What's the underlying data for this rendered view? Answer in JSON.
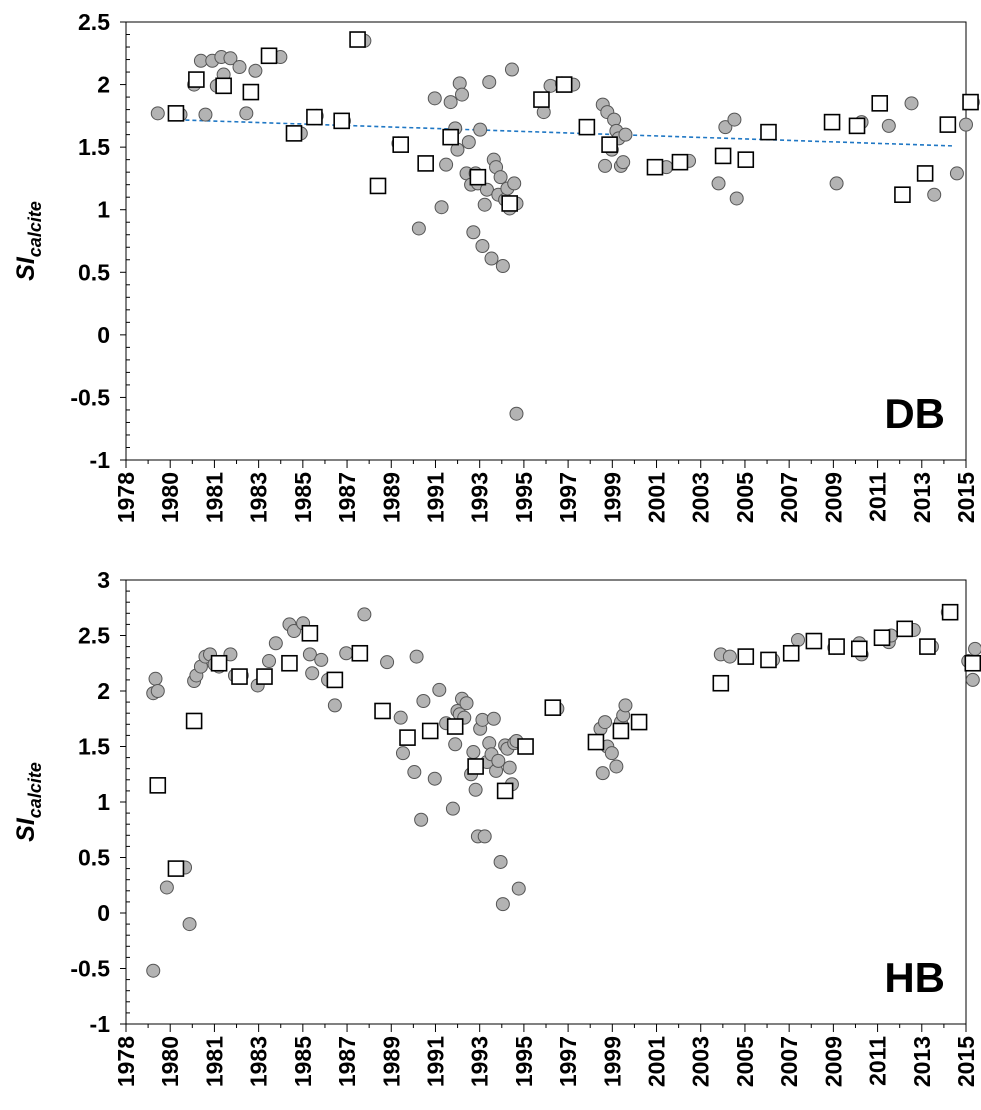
{
  "chart_data": [
    {
      "type": "scatter",
      "panel_label": "DB",
      "ylabel_main": "SI",
      "ylabel_sub": "calcite",
      "ylim": [
        -1,
        2.5
      ],
      "yticks": [
        "-1",
        "-0.5",
        "0",
        "0.5",
        "1",
        "1.5",
        "2",
        "2.5"
      ],
      "xlim": [
        1978,
        2015
      ],
      "xticks": [
        "1978",
        "1980",
        "1981",
        "1983",
        "1985",
        "1987",
        "1989",
        "1991",
        "1993",
        "1995",
        "1997",
        "1999",
        "2001",
        "2003",
        "2005",
        "2007",
        "2009",
        "2011",
        "2013",
        "2015"
      ],
      "trend_color": "#1f77c4",
      "trend": [
        [
          1980.0,
          1.72
        ],
        [
          2014.4,
          1.51
        ]
      ],
      "series": [
        {
          "marker": "circle",
          "color": "#b3b3b3",
          "points": [
            [
              1979.4,
              1.77
            ],
            [
              1980.4,
              1.76
            ],
            [
              1981.0,
              2.0
            ],
            [
              1981.3,
              2.19
            ],
            [
              1981.5,
              1.76
            ],
            [
              1981.8,
              2.19
            ],
            [
              1982.0,
              1.99
            ],
            [
              1982.2,
              2.22
            ],
            [
              1982.3,
              2.08
            ],
            [
              1982.6,
              2.21
            ],
            [
              1983.0,
              2.14
            ],
            [
              1983.3,
              1.77
            ],
            [
              1983.7,
              2.11
            ],
            [
              1984.4,
              2.22
            ],
            [
              1984.8,
              2.22
            ],
            [
              1985.7,
              1.61
            ],
            [
              1986.4,
              1.75
            ],
            [
              1987.6,
              1.71
            ],
            [
              1988.5,
              2.35
            ],
            [
              1989.1,
              1.19
            ],
            [
              1990.0,
              1.53
            ],
            [
              1990.9,
              0.85
            ],
            [
              1991.6,
              1.89
            ],
            [
              1991.9,
              1.02
            ],
            [
              1992.1,
              1.36
            ],
            [
              1992.3,
              1.86
            ],
            [
              1992.5,
              1.65
            ],
            [
              1992.6,
              1.48
            ],
            [
              1992.7,
              2.01
            ],
            [
              1992.8,
              1.92
            ],
            [
              1993.0,
              1.29
            ],
            [
              1993.1,
              1.54
            ],
            [
              1993.2,
              1.2
            ],
            [
              1993.3,
              0.82
            ],
            [
              1993.4,
              1.29
            ],
            [
              1993.5,
              1.21
            ],
            [
              1993.6,
              1.64
            ],
            [
              1993.7,
              0.71
            ],
            [
              1993.8,
              1.04
            ],
            [
              1993.9,
              1.16
            ],
            [
              1994.0,
              2.02
            ],
            [
              1994.1,
              0.61
            ],
            [
              1994.2,
              1.4
            ],
            [
              1994.3,
              1.34
            ],
            [
              1994.4,
              1.12
            ],
            [
              1994.5,
              1.26
            ],
            [
              1994.6,
              0.55
            ],
            [
              1994.7,
              1.08
            ],
            [
              1994.8,
              1.17
            ],
            [
              1994.9,
              1.01
            ],
            [
              1995.0,
              2.12
            ],
            [
              1995.1,
              1.21
            ],
            [
              1995.2,
              -0.63
            ],
            [
              1995.2,
              1.05
            ],
            [
              1996.4,
              1.78
            ],
            [
              1996.7,
              1.99
            ],
            [
              1997.2,
              2.01
            ],
            [
              1997.7,
              2.0
            ],
            [
              1999.0,
              1.84
            ],
            [
              1999.1,
              1.35
            ],
            [
              1999.2,
              1.78
            ],
            [
              1999.4,
              1.48
            ],
            [
              1999.5,
              1.72
            ],
            [
              1999.6,
              1.63
            ],
            [
              1999.7,
              1.57
            ],
            [
              1999.8,
              1.35
            ],
            [
              1999.9,
              1.38
            ],
            [
              2000.0,
              1.6
            ],
            [
              2001.3,
              1.34
            ],
            [
              2001.8,
              1.34
            ],
            [
              2002.8,
              1.39
            ],
            [
              2004.1,
              1.21
            ],
            [
              2004.4,
              1.66
            ],
            [
              2004.8,
              1.72
            ],
            [
              2004.9,
              1.09
            ],
            [
              2006.3,
              1.62
            ],
            [
              2009.3,
              1.21
            ],
            [
              2010.4,
              1.7
            ],
            [
              2011.6,
              1.67
            ],
            [
              2012.6,
              1.85
            ],
            [
              2013.6,
              1.12
            ],
            [
              2014.6,
              1.29
            ],
            [
              2015.0,
              1.68
            ],
            [
              2015.3,
              1.86
            ]
          ]
        },
        {
          "marker": "square",
          "color": "#ffffff",
          "points": [
            [
              1980.2,
              1.77
            ],
            [
              1981.1,
              2.04
            ],
            [
              1982.3,
              1.99
            ],
            [
              1983.5,
              1.94
            ],
            [
              1984.3,
              2.23
            ],
            [
              1985.4,
              1.61
            ],
            [
              1986.3,
              1.74
            ],
            [
              1987.5,
              1.71
            ],
            [
              1988.2,
              2.36
            ],
            [
              1989.1,
              1.19
            ],
            [
              1990.1,
              1.52
            ],
            [
              1991.2,
              1.37
            ],
            [
              1992.3,
              1.58
            ],
            [
              1993.5,
              1.26
            ],
            [
              1994.9,
              1.05
            ],
            [
              1996.3,
              1.88
            ],
            [
              1997.3,
              2.0
            ],
            [
              1998.3,
              1.66
            ],
            [
              1999.3,
              1.52
            ],
            [
              2001.3,
              1.34
            ],
            [
              2002.4,
              1.38
            ],
            [
              2004.3,
              1.43
            ],
            [
              2005.3,
              1.4
            ],
            [
              2006.3,
              1.62
            ],
            [
              2009.1,
              1.7
            ],
            [
              2010.2,
              1.67
            ],
            [
              2011.2,
              1.85
            ],
            [
              2012.2,
              1.12
            ],
            [
              2013.2,
              1.29
            ],
            [
              2014.2,
              1.68
            ],
            [
              2015.2,
              1.86
            ]
          ]
        }
      ]
    },
    {
      "type": "scatter",
      "panel_label": "HB",
      "ylabel_main": "SI",
      "ylabel_sub": "calcite",
      "ylim": [
        -1,
        3
      ],
      "yticks": [
        "-1",
        "-0.5",
        "0",
        "0.5",
        "1",
        "1.5",
        "2",
        "2.5",
        "3"
      ],
      "xlim": [
        1978,
        2015
      ],
      "xticks": [
        "1978",
        "1980",
        "1981",
        "1983",
        "1985",
        "1987",
        "1989",
        "1991",
        "1993",
        "1995",
        "1997",
        "1999",
        "2001",
        "2003",
        "2005",
        "2007",
        "2009",
        "2011",
        "2013",
        "2015"
      ],
      "series": [
        {
          "marker": "circle",
          "color": "#b3b3b3",
          "points": [
            [
              1979.2,
              -0.52
            ],
            [
              1979.2,
              1.98
            ],
            [
              1979.3,
              2.11
            ],
            [
              1979.4,
              2.0
            ],
            [
              1979.8,
              0.23
            ],
            [
              1980.6,
              0.41
            ],
            [
              1980.8,
              -0.1
            ],
            [
              1981.0,
              2.09
            ],
            [
              1981.1,
              2.14
            ],
            [
              1981.3,
              2.22
            ],
            [
              1981.5,
              2.31
            ],
            [
              1981.7,
              2.33
            ],
            [
              1981.9,
              2.24
            ],
            [
              1982.1,
              2.22
            ],
            [
              1982.6,
              2.33
            ],
            [
              1982.8,
              2.14
            ],
            [
              1983.1,
              2.14
            ],
            [
              1983.8,
              2.05
            ],
            [
              1984.3,
              2.27
            ],
            [
              1984.6,
              2.43
            ],
            [
              1985.2,
              2.6
            ],
            [
              1985.4,
              2.54
            ],
            [
              1985.8,
              2.61
            ],
            [
              1986.1,
              2.33
            ],
            [
              1986.2,
              2.16
            ],
            [
              1986.6,
              2.28
            ],
            [
              1986.9,
              2.1
            ],
            [
              1987.2,
              1.87
            ],
            [
              1987.7,
              2.34
            ],
            [
              1988.5,
              2.69
            ],
            [
              1989.5,
              2.26
            ],
            [
              1990.1,
              1.76
            ],
            [
              1990.2,
              1.44
            ],
            [
              1990.7,
              1.27
            ],
            [
              1990.8,
              2.31
            ],
            [
              1991.0,
              0.84
            ],
            [
              1991.1,
              1.91
            ],
            [
              1991.6,
              1.21
            ],
            [
              1991.8,
              2.01
            ],
            [
              1992.1,
              1.71
            ],
            [
              1992.4,
              0.94
            ],
            [
              1992.5,
              1.52
            ],
            [
              1992.6,
              1.82
            ],
            [
              1992.7,
              1.79
            ],
            [
              1992.8,
              1.93
            ],
            [
              1992.9,
              1.76
            ],
            [
              1993.0,
              1.89
            ],
            [
              1993.2,
              1.25
            ],
            [
              1993.3,
              1.45
            ],
            [
              1993.4,
              1.11
            ],
            [
              1993.5,
              0.69
            ],
            [
              1993.6,
              1.66
            ],
            [
              1993.7,
              1.74
            ],
            [
              1993.8,
              0.69
            ],
            [
              1993.9,
              1.36
            ],
            [
              1994.0,
              1.53
            ],
            [
              1994.1,
              1.43
            ],
            [
              1994.2,
              1.75
            ],
            [
              1994.3,
              1.28
            ],
            [
              1994.4,
              1.37
            ],
            [
              1994.5,
              0.46
            ],
            [
              1994.6,
              0.08
            ],
            [
              1994.7,
              1.51
            ],
            [
              1994.8,
              1.48
            ],
            [
              1994.9,
              1.31
            ],
            [
              1995.0,
              1.16
            ],
            [
              1995.1,
              1.53
            ],
            [
              1995.2,
              1.55
            ],
            [
              1995.3,
              0.22
            ],
            [
              1997.0,
              1.84
            ],
            [
              1998.9,
              1.66
            ],
            [
              1999.0,
              1.26
            ],
            [
              1999.1,
              1.72
            ],
            [
              1999.2,
              1.5
            ],
            [
              1999.4,
              1.44
            ],
            [
              1999.6,
              1.32
            ],
            [
              1999.8,
              1.72
            ],
            [
              1999.9,
              1.78
            ],
            [
              2000.0,
              1.87
            ],
            [
              2004.2,
              2.33
            ],
            [
              2004.6,
              2.31
            ],
            [
              2006.5,
              2.28
            ],
            [
              2007.6,
              2.46
            ],
            [
              2009.2,
              2.39
            ],
            [
              2010.3,
              2.43
            ],
            [
              2010.4,
              2.33
            ],
            [
              2011.6,
              2.44
            ],
            [
              2011.7,
              2.5
            ],
            [
              2012.7,
              2.55
            ],
            [
              2013.5,
              2.4
            ],
            [
              2014.2,
              2.71
            ],
            [
              2015.1,
              2.27
            ],
            [
              2015.3,
              2.1
            ],
            [
              2015.4,
              2.38
            ]
          ]
        },
        {
          "marker": "square",
          "color": "#ffffff",
          "points": [
            [
              1979.4,
              1.15
            ],
            [
              1980.2,
              0.4
            ],
            [
              1981.0,
              1.73
            ],
            [
              1982.1,
              2.25
            ],
            [
              1983.0,
              2.13
            ],
            [
              1984.1,
              2.13
            ],
            [
              1985.2,
              2.25
            ],
            [
              1986.1,
              2.52
            ],
            [
              1987.2,
              2.1
            ],
            [
              1988.3,
              2.34
            ],
            [
              1989.3,
              1.82
            ],
            [
              1990.4,
              1.58
            ],
            [
              1991.4,
              1.64
            ],
            [
              1992.5,
              1.68
            ],
            [
              1993.4,
              1.32
            ],
            [
              1994.7,
              1.1
            ],
            [
              1995.6,
              1.5
            ],
            [
              1996.8,
              1.85
            ],
            [
              1998.7,
              1.54
            ],
            [
              1999.8,
              1.64
            ],
            [
              2000.6,
              1.72
            ],
            [
              2004.2,
              2.07
            ],
            [
              2005.3,
              2.31
            ],
            [
              2006.3,
              2.28
            ],
            [
              2007.3,
              2.34
            ],
            [
              2008.3,
              2.45
            ],
            [
              2009.3,
              2.4
            ],
            [
              2010.3,
              2.38
            ],
            [
              2011.3,
              2.48
            ],
            [
              2012.3,
              2.56
            ],
            [
              2013.3,
              2.4
            ],
            [
              2014.3,
              2.71
            ],
            [
              2015.3,
              2.25
            ]
          ]
        }
      ]
    }
  ]
}
